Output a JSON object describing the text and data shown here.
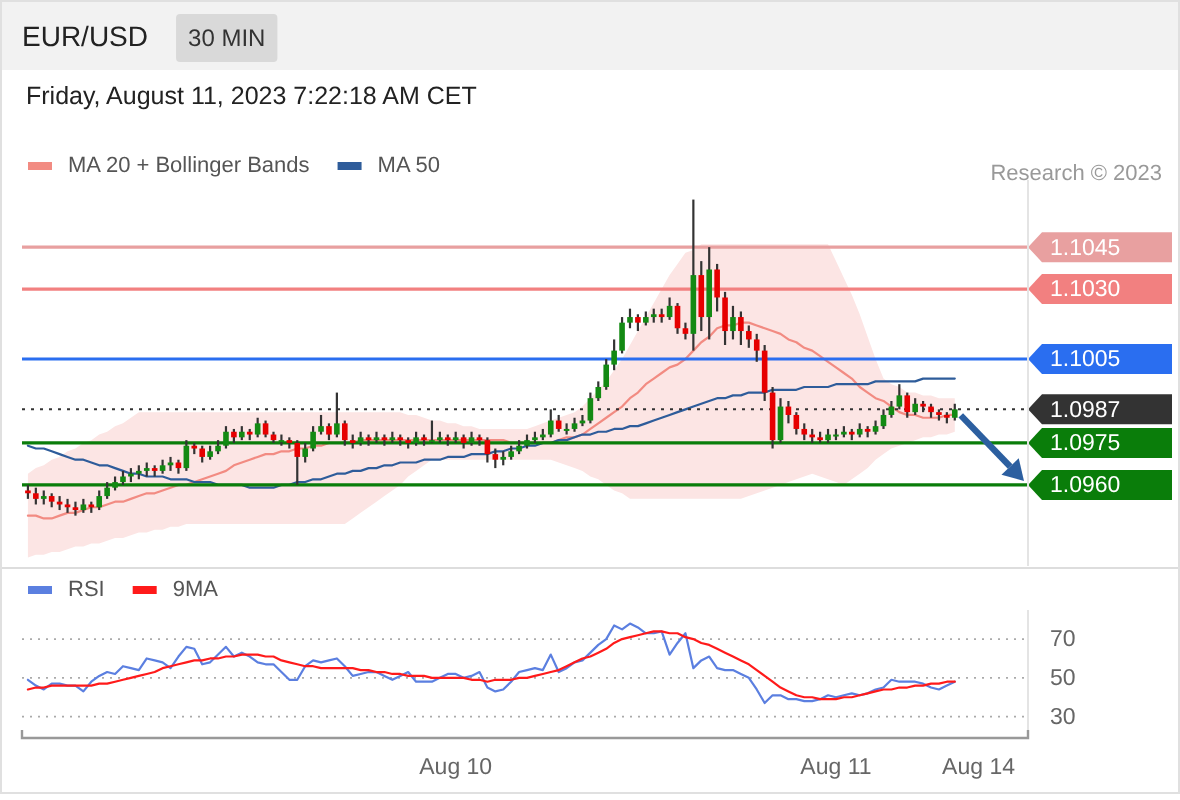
{
  "chart_data": [
    {
      "type": "candlestick",
      "title": "EUR/USD",
      "subtitle": "30 MIN",
      "annotations": [
        "Friday, August 11, 2023 7:22:18 AM CET",
        "Research © 2023"
      ],
      "categories": [
        null,
        null,
        null,
        null,
        null,
        null,
        null,
        null,
        null,
        null,
        null,
        null,
        null,
        null,
        null,
        null,
        null,
        null,
        null,
        null,
        null,
        null,
        null,
        null,
        null,
        null,
        null,
        null,
        null,
        null,
        null,
        null,
        null,
        null,
        null,
        null,
        null,
        null,
        null,
        null,
        null,
        null,
        null,
        null,
        null,
        null,
        null,
        null,
        null,
        null,
        null,
        null,
        null,
        null,
        null,
        null,
        null,
        null,
        null,
        null,
        null,
        null,
        null,
        null,
        null,
        null,
        null,
        null,
        null,
        null,
        null,
        null,
        null,
        null,
        null,
        null,
        null,
        null,
        null,
        null,
        null,
        null,
        null,
        null,
        null,
        null,
        null,
        null,
        null,
        null,
        null,
        null,
        null,
        null,
        null,
        null,
        null,
        null,
        null,
        null,
        null,
        null,
        null,
        null,
        null,
        null,
        null,
        null,
        null,
        null,
        null,
        null,
        null,
        null,
        null,
        null,
        null,
        null,
        null,
        null,
        null,
        null,
        null,
        null,
        null,
        null,
        null
      ],
      "ohlc": [
        [
          1.0958,
          1.096,
          1.0955,
          1.0957
        ],
        [
          1.0957,
          1.0959,
          1.0953,
          1.0955
        ],
        [
          1.0955,
          1.0958,
          1.0953,
          1.0956
        ],
        [
          1.0956,
          1.0957,
          1.0952,
          1.0954
        ],
        [
          1.0954,
          1.0956,
          1.0951,
          1.0953
        ],
        [
          1.0953,
          1.0955,
          1.095,
          1.0952
        ],
        [
          1.0952,
          1.0954,
          1.0949,
          1.0951
        ],
        [
          1.0951,
          1.0955,
          1.095,
          1.0953
        ],
        [
          1.0953,
          1.0954,
          1.095,
          1.0952
        ],
        [
          1.0952,
          1.0958,
          1.0951,
          1.0956
        ],
        [
          1.0956,
          1.0961,
          1.0955,
          1.0959
        ],
        [
          1.0959,
          1.0963,
          1.0958,
          1.0961
        ],
        [
          1.0961,
          1.0965,
          1.096,
          1.0963
        ],
        [
          1.0963,
          1.0966,
          1.0961,
          1.0964
        ],
        [
          1.0964,
          1.0967,
          1.0962,
          1.0965
        ],
        [
          1.0965,
          1.0968,
          1.0963,
          1.0966
        ],
        [
          1.0966,
          1.0967,
          1.0963,
          1.0965
        ],
        [
          1.0965,
          1.0969,
          1.0964,
          1.0967
        ],
        [
          1.0967,
          1.097,
          1.0965,
          1.0968
        ],
        [
          1.0968,
          1.0969,
          1.0964,
          1.0966
        ],
        [
          1.0966,
          1.0976,
          1.0965,
          1.0974
        ],
        [
          1.0974,
          1.0975,
          1.0971,
          1.0973
        ],
        [
          1.0973,
          1.0974,
          1.0968,
          1.097
        ],
        [
          1.097,
          1.0974,
          1.0969,
          1.0972
        ],
        [
          1.0972,
          1.0976,
          1.0971,
          1.0974
        ],
        [
          1.0974,
          1.0981,
          1.0973,
          1.0979
        ],
        [
          1.0979,
          1.098,
          1.0975,
          1.0977
        ],
        [
          1.0977,
          1.0981,
          1.0976,
          1.0979
        ],
        [
          1.0979,
          1.098,
          1.0976,
          1.0978
        ],
        [
          1.0978,
          1.0984,
          1.0977,
          1.0982
        ],
        [
          1.0982,
          1.0983,
          1.0977,
          1.0978
        ],
        [
          1.0978,
          1.0979,
          1.0975,
          1.0976
        ],
        [
          1.0976,
          1.0978,
          1.0974,
          1.0976
        ],
        [
          1.0976,
          1.0977,
          1.0973,
          1.0975
        ],
        [
          1.0975,
          1.0976,
          1.096,
          1.097
        ],
        [
          1.097,
          1.0975,
          1.0968,
          1.0973
        ],
        [
          1.0973,
          1.0981,
          1.0972,
          1.0979
        ],
        [
          1.0979,
          1.0985,
          1.0978,
          1.0981
        ],
        [
          1.0981,
          1.0982,
          1.0976,
          1.0978
        ],
        [
          1.0978,
          1.0993,
          1.0977,
          1.0982
        ],
        [
          1.0982,
          1.0983,
          1.0974,
          1.0976
        ],
        [
          1.0976,
          1.0978,
          1.0973,
          1.0975
        ],
        [
          1.0975,
          1.0979,
          1.0974,
          1.0977
        ],
        [
          1.0977,
          1.0978,
          1.0974,
          1.0976
        ],
        [
          1.0976,
          1.0979,
          1.0975,
          1.0977
        ],
        [
          1.0977,
          1.0978,
          1.0974,
          1.0976
        ],
        [
          1.0976,
          1.0979,
          1.0975,
          1.0977
        ],
        [
          1.0977,
          1.0978,
          1.0974,
          1.0976
        ],
        [
          1.0976,
          1.0977,
          1.0973,
          1.0975
        ],
        [
          1.0975,
          1.0979,
          1.0974,
          1.0977
        ],
        [
          1.0977,
          1.0978,
          1.0974,
          1.0976
        ],
        [
          1.0976,
          1.0983,
          1.0975,
          1.0976
        ],
        [
          1.0976,
          1.0979,
          1.0975,
          1.0977
        ],
        [
          1.0977,
          1.0978,
          1.0974,
          1.0976
        ],
        [
          1.0976,
          1.0979,
          1.0975,
          1.0977
        ],
        [
          1.0977,
          1.0978,
          1.0973,
          1.0975
        ],
        [
          1.0975,
          1.0979,
          1.0974,
          1.0977
        ],
        [
          1.0977,
          1.0978,
          1.0974,
          1.0976
        ],
        [
          1.0976,
          1.0977,
          1.0968,
          1.0971
        ],
        [
          1.0971,
          1.0973,
          1.0966,
          1.0969
        ],
        [
          1.0969,
          1.0972,
          1.0967,
          1.097
        ],
        [
          1.097,
          1.0974,
          1.0969,
          1.0972
        ],
        [
          1.0972,
          1.0976,
          1.0971,
          1.0974
        ],
        [
          1.0974,
          1.0978,
          1.0973,
          1.0976
        ],
        [
          1.0976,
          1.0979,
          1.0975,
          1.0977
        ],
        [
          1.0977,
          1.098,
          1.0976,
          1.0978
        ],
        [
          1.0978,
          1.0987,
          1.0977,
          1.0983
        ],
        [
          1.0983,
          1.0985,
          1.0979,
          1.098
        ],
        [
          1.098,
          1.0982,
          1.0978,
          1.098
        ],
        [
          1.098,
          1.0984,
          1.0979,
          1.0982
        ],
        [
          1.0982,
          1.0985,
          1.0981,
          1.0983
        ],
        [
          1.0983,
          1.0993,
          1.0982,
          1.0991
        ],
        [
          1.0991,
          1.0997,
          1.099,
          1.0995
        ],
        [
          1.0995,
          1.1005,
          1.0994,
          1.1003
        ],
        [
          1.1003,
          1.1012,
          1.1001,
          1.1008
        ],
        [
          1.1008,
          1.102,
          1.1007,
          1.1018
        ],
        [
          1.1018,
          1.1023,
          1.1016,
          1.102
        ],
        [
          1.102,
          1.1021,
          1.1015,
          1.1018
        ],
        [
          1.1018,
          1.1022,
          1.1017,
          1.102
        ],
        [
          1.102,
          1.1023,
          1.1018,
          1.1021
        ],
        [
          1.1021,
          1.1023,
          1.1018,
          1.102
        ],
        [
          1.102,
          1.1027,
          1.1019,
          1.1024
        ],
        [
          1.1024,
          1.1025,
          1.1014,
          1.1016
        ],
        [
          1.1016,
          1.1018,
          1.1012,
          1.1014
        ],
        [
          1.1014,
          1.1062,
          1.1008,
          1.1035
        ],
        [
          1.1035,
          1.104,
          1.1015,
          1.102
        ],
        [
          1.102,
          1.1045,
          1.1012,
          1.1037
        ],
        [
          1.1037,
          1.1039,
          1.1022,
          1.1027
        ],
        [
          1.1027,
          1.1029,
          1.101,
          1.1015
        ],
        [
          1.1015,
          1.1024,
          1.1012,
          1.102
        ],
        [
          1.102,
          1.1022,
          1.101,
          1.1015
        ],
        [
          1.1015,
          1.1017,
          1.1009,
          1.1012
        ],
        [
          1.1012,
          1.1014,
          1.1004,
          1.1008
        ],
        [
          1.1008,
          1.101,
          1.099,
          1.0993
        ],
        [
          1.0993,
          1.0995,
          1.0973,
          1.0976
        ],
        [
          1.0976,
          1.0991,
          1.0975,
          1.0988
        ],
        [
          1.0988,
          1.099,
          1.0982,
          1.0985
        ],
        [
          1.0985,
          1.0986,
          1.0978,
          1.098
        ],
        [
          1.098,
          1.0982,
          1.0976,
          1.0978
        ],
        [
          1.0978,
          1.098,
          1.0975,
          1.0977
        ],
        [
          1.0977,
          1.0979,
          1.0975,
          1.0976
        ],
        [
          1.0976,
          1.098,
          1.0975,
          1.0978
        ],
        [
          1.0978,
          1.098,
          1.0976,
          1.0978
        ],
        [
          1.0978,
          1.0981,
          1.0977,
          1.0979
        ],
        [
          1.0979,
          1.098,
          1.0976,
          1.0978
        ],
        [
          1.0978,
          1.0982,
          1.0977,
          1.098
        ],
        [
          1.098,
          1.0981,
          1.0977,
          1.0979
        ],
        [
          1.0979,
          1.0983,
          1.0978,
          1.0981
        ],
        [
          1.0981,
          1.0987,
          1.098,
          1.0985
        ],
        [
          1.0985,
          1.099,
          1.0984,
          1.0988
        ],
        [
          1.0988,
          1.0996,
          1.0987,
          1.0992
        ],
        [
          1.0992,
          1.0993,
          1.0984,
          1.0986
        ],
        [
          1.0986,
          1.0991,
          1.0985,
          1.0989
        ],
        [
          1.0989,
          1.099,
          1.0986,
          1.0988
        ],
        [
          1.0988,
          1.0989,
          1.0984,
          1.0986
        ],
        [
          1.0986,
          1.0987,
          1.0983,
          1.0985
        ],
        [
          1.0985,
          1.0986,
          1.0982,
          1.0984
        ],
        [
          1.0984,
          1.0989,
          1.0983,
          1.0987
        ],
        null,
        null,
        null,
        null,
        null,
        null,
        null,
        null,
        null
      ],
      "series": [
        {
          "type": "line",
          "name": "MA 20 + Bollinger Bands",
          "color": "#f28b82",
          "values": [
            1.0949,
            1.0949,
            1.0948,
            1.0948,
            1.0949,
            1.095,
            1.095,
            1.0951,
            1.0952,
            1.0952,
            1.0953,
            1.0954,
            1.0954,
            1.0955,
            1.0956,
            1.0957,
            1.0957,
            1.0958,
            1.0959,
            1.096,
            1.096,
            1.0961,
            1.0962,
            1.0963,
            1.0964,
            1.0965,
            1.0967,
            1.0968,
            1.0969,
            1.097,
            1.0971,
            1.0971,
            1.0972,
            1.0972,
            1.0973,
            1.0973,
            1.0974,
            1.0974,
            1.0975,
            1.0975,
            1.0975,
            1.0975,
            1.0976,
            1.0976,
            1.0976,
            1.0976,
            1.0976,
            1.0976,
            1.0976,
            1.0976,
            1.0976,
            1.0976,
            1.0976,
            1.0976,
            1.0976,
            1.0976,
            1.0976,
            1.0976,
            1.0976,
            1.0976,
            1.0976,
            1.0975,
            1.0975,
            1.0975,
            1.0975,
            1.0975,
            1.0975,
            1.0976,
            1.0977,
            1.0977,
            1.0978,
            1.098,
            1.0982,
            1.0984,
            1.0986,
            1.0988,
            1.0991,
            1.0993,
            1.0996,
            1.0998,
            1.1,
            1.1002,
            1.1003,
            1.1005,
            1.1008,
            1.1011,
            1.1013,
            1.1016,
            1.1017,
            1.1017,
            1.1018,
            1.1018,
            1.1017,
            1.1016,
            1.1015,
            1.1014,
            1.1012,
            1.1011,
            1.1009,
            1.1008,
            1.1006,
            1.1004,
            1.1002,
            1.1,
            1.0998,
            1.0995,
            1.0993,
            1.0991,
            1.099,
            1.0988,
            1.0986,
            1.0985,
            1.0985,
            1.0984,
            1.0984,
            1.0984,
            1.0985,
            1.0985,
            null,
            null,
            null,
            null,
            null,
            null,
            null,
            null,
            null
          ],
          "upper": [
            1.0964,
            1.0966,
            1.0967,
            1.0969,
            1.097,
            1.0972,
            1.0973,
            1.0975,
            1.0976,
            1.0978,
            1.0979,
            1.0981,
            1.0982,
            1.0984,
            1.0986,
            1.0986,
            1.0986,
            1.0986,
            1.0986,
            1.0986,
            1.0986,
            1.0986,
            1.0986,
            1.0986,
            1.0986,
            1.0986,
            1.0986,
            1.0986,
            1.0986,
            1.0986,
            1.0986,
            1.0986,
            1.0986,
            1.0986,
            1.0986,
            1.0986,
            1.0986,
            1.0986,
            1.0986,
            1.0986,
            1.0986,
            1.0986,
            1.0986,
            1.0986,
            1.0986,
            1.0986,
            1.0986,
            1.0986,
            1.0985,
            1.0985,
            1.0984,
            1.0983,
            1.0983,
            1.0982,
            1.0982,
            1.0981,
            1.0981,
            1.098,
            1.098,
            1.098,
            1.098,
            1.098,
            1.098,
            1.098,
            1.0981,
            1.0982,
            1.0983,
            1.0984,
            1.0985,
            1.0986,
            1.0988,
            1.0991,
            1.0994,
            1.0997,
            1.1001,
            1.1005,
            1.101,
            1.1015,
            1.102,
            1.1025,
            1.103,
            1.1035,
            1.1039,
            1.1043,
            1.1044,
            1.1046,
            1.1046,
            1.1046,
            1.1046,
            1.1046,
            1.1046,
            1.1046,
            1.1046,
            1.1046,
            1.1046,
            1.1046,
            1.1046,
            1.1046,
            1.1046,
            1.1046,
            1.1046,
            1.1046,
            1.104,
            1.1034,
            1.1028,
            1.1021,
            1.1013,
            1.1005,
            1.0998,
            1.0996,
            1.0995,
            1.0993,
            1.0993,
            1.0992,
            1.0992,
            1.0991,
            1.0991,
            1.0991,
            null,
            null,
            null,
            null,
            null,
            null,
            null,
            null,
            null
          ],
          "lower": [
            1.0934,
            1.0935,
            1.0935,
            1.0936,
            1.0936,
            1.0937,
            1.0938,
            1.0938,
            1.0939,
            1.0939,
            1.094,
            1.0941,
            1.0941,
            1.0942,
            1.0943,
            1.0943,
            1.0944,
            1.0944,
            1.0945,
            1.0945,
            1.0946,
            1.0946,
            1.0946,
            1.0946,
            1.0946,
            1.0946,
            1.0946,
            1.0946,
            1.0946,
            1.0946,
            1.0946,
            1.0946,
            1.0946,
            1.0946,
            1.0946,
            1.0946,
            1.0946,
            1.0946,
            1.0946,
            1.0946,
            1.0946,
            1.0948,
            1.095,
            1.0952,
            1.0954,
            1.0956,
            1.0958,
            1.096,
            1.0963,
            1.0965,
            1.0967,
            1.0969,
            1.0969,
            1.0969,
            1.0969,
            1.0969,
            1.0969,
            1.0969,
            1.0969,
            1.0969,
            1.0969,
            1.0969,
            1.0969,
            1.0969,
            1.0969,
            1.0969,
            1.0969,
            1.0968,
            1.0967,
            1.0966,
            1.0965,
            1.0963,
            1.0962,
            1.096,
            1.0958,
            1.0957,
            1.0955,
            1.0955,
            1.0955,
            1.0955,
            1.0955,
            1.0955,
            1.0955,
            1.0955,
            1.0955,
            1.0955,
            1.0955,
            1.0955,
            1.0955,
            1.0955,
            1.0955,
            1.0956,
            1.0957,
            1.0958,
            1.0959,
            1.096,
            1.0961,
            1.0962,
            1.0963,
            1.0964,
            1.0963,
            1.0962,
            1.0961,
            1.096,
            1.0962,
            1.0964,
            1.0966,
            1.0969,
            1.0971,
            1.0973,
            1.0974,
            1.0975,
            1.0976,
            1.0977,
            1.0977,
            1.0978,
            1.0978,
            1.0979,
            null,
            null,
            null,
            null,
            null,
            null,
            null,
            null,
            null
          ]
        },
        {
          "type": "line",
          "name": "MA 50",
          "color": "#2e5c9a",
          "values": [
            1.0974,
            1.0973,
            1.0973,
            1.0972,
            1.0971,
            1.097,
            1.0969,
            1.0969,
            1.0968,
            1.0967,
            1.0967,
            1.0966,
            1.0965,
            1.0964,
            1.0964,
            1.0963,
            1.0963,
            1.0963,
            1.0962,
            1.0962,
            1.0962,
            1.0961,
            1.0961,
            1.0961,
            1.096,
            1.096,
            1.096,
            1.096,
            1.0959,
            1.0959,
            1.0959,
            1.0959,
            1.096,
            1.096,
            1.0961,
            1.0961,
            1.0962,
            1.0962,
            1.0963,
            1.0964,
            1.0964,
            1.0965,
            1.0965,
            1.0966,
            1.0966,
            1.0967,
            1.0967,
            1.0968,
            1.0968,
            1.0968,
            1.0969,
            1.0969,
            1.0969,
            1.097,
            1.097,
            1.097,
            1.0971,
            1.0971,
            1.0971,
            1.0972,
            1.0972,
            1.0973,
            1.0973,
            1.0974,
            1.0974,
            1.0975,
            1.0975,
            1.0976,
            1.0976,
            1.0977,
            1.0978,
            1.0978,
            1.0979,
            1.0979,
            1.098,
            1.098,
            1.0981,
            1.0981,
            1.0982,
            1.0983,
            1.0984,
            1.0985,
            1.0986,
            1.0987,
            1.0988,
            1.0989,
            1.099,
            1.0991,
            1.0991,
            1.0992,
            1.0992,
            1.0993,
            1.0993,
            1.0993,
            1.0994,
            1.0994,
            1.0994,
            1.0994,
            1.0995,
            1.0995,
            1.0995,
            1.0995,
            1.0996,
            1.0996,
            1.0996,
            1.0996,
            1.0996,
            1.0997,
            1.0997,
            1.0997,
            1.0997,
            1.0997,
            1.0997,
            1.0998,
            1.0998,
            1.0998,
            1.0998,
            1.0998,
            null,
            null,
            null,
            null,
            null,
            null,
            null,
            null,
            null
          ]
        }
      ],
      "ylim": [
        1.0931,
        1.1069
      ],
      "yticks": [
        {
          "value": 1.096,
          "label": "1.0960"
        },
        1.0975,
        1.0987,
        1.1005,
        {
          "value": 1.103,
          "label": "1.1030"
        },
        1.1045
      ],
      "ref_lines": [
        {
          "axis": "y",
          "value": 1.1045,
          "color": "#e8a0a0",
          "line_style": "solid"
        },
        {
          "axis": "y",
          "value": 1.103,
          "color": "#f28080",
          "line_style": "solid"
        },
        {
          "axis": "y",
          "value": 1.1005,
          "color": "#2a6ef0",
          "line_style": "solid"
        },
        {
          "axis": "y",
          "value": 1.0987,
          "color": "#333333",
          "line_style": "dotted"
        },
        {
          "axis": "y",
          "value": 1.0975,
          "color": "#0a7d0a",
          "line_style": "solid"
        },
        {
          "axis": "y",
          "value": 1.096,
          "color": "#0a7d0a",
          "line_style": "solid"
        }
      ],
      "legend": "top left",
      "tick_labels": "y"
    },
    {
      "type": "line",
      "categories": [
        null,
        null,
        null,
        null,
        null,
        null,
        null,
        null,
        null,
        null,
        null,
        null,
        null,
        null,
        null,
        null,
        null,
        null,
        null,
        null,
        null,
        null,
        null,
        null,
        null,
        null,
        null,
        null,
        null,
        null,
        null,
        null,
        null,
        null,
        null,
        null,
        null,
        null,
        null,
        null,
        null,
        null,
        null,
        null,
        null,
        null,
        null,
        null,
        null,
        null,
        null,
        null,
        null,
        null,
        "Aug 10",
        null,
        null,
        null,
        null,
        null,
        null,
        null,
        null,
        null,
        null,
        null,
        null,
        null,
        null,
        null,
        null,
        null,
        null,
        null,
        null,
        null,
        null,
        null,
        null,
        null,
        null,
        null,
        null,
        null,
        null,
        null,
        null,
        null,
        null,
        null,
        null,
        null,
        null,
        null,
        null,
        null,
        null,
        null,
        null,
        null,
        null,
        null,
        "Aug 11",
        null,
        null,
        null,
        null,
        null,
        null,
        null,
        null,
        null,
        null,
        null,
        null,
        null,
        null,
        null,
        null,
        null,
        "Aug 14",
        null,
        null,
        null,
        null,
        null,
        null
      ],
      "series": [
        {
          "name": "RSI",
          "color": "#5b7fe0",
          "values": [
            49,
            46,
            44,
            47,
            47,
            46,
            46,
            43,
            48,
            51,
            53,
            52,
            56,
            55,
            54,
            60,
            59,
            58,
            55,
            61,
            66,
            65,
            57,
            58,
            62,
            66,
            61,
            63,
            61,
            58,
            57,
            57,
            53,
            49,
            49,
            56,
            59,
            58,
            59,
            60,
            56,
            51,
            52,
            53,
            53,
            51,
            49,
            51,
            53,
            48,
            48,
            48,
            50,
            52,
            52,
            50,
            51,
            53,
            45,
            43,
            44,
            48,
            53,
            54,
            55,
            54,
            62,
            53,
            55,
            58,
            59,
            63,
            67,
            70,
            77,
            75,
            78,
            76,
            73,
            73,
            74,
            62,
            68,
            73,
            55,
            59,
            61,
            55,
            54,
            54,
            52,
            50,
            44,
            37,
            41,
            41,
            39,
            39,
            38,
            38,
            39,
            41,
            40,
            41,
            42,
            41,
            42,
            44,
            45,
            49,
            48,
            48,
            48,
            47,
            45,
            44,
            46,
            48,
            null,
            null,
            null,
            null,
            null,
            null,
            null,
            null,
            null
          ]
        },
        {
          "name": "9MA",
          "color": "#ff1a1a",
          "values": [
            44,
            45,
            45,
            46,
            46,
            46,
            46,
            46,
            46,
            47,
            47,
            48,
            49,
            50,
            51,
            52,
            53,
            55,
            56,
            57,
            58,
            59,
            59,
            60,
            60,
            61,
            61,
            62,
            62,
            62,
            61,
            61,
            59,
            58,
            57,
            56,
            56,
            55,
            55,
            55,
            55,
            55,
            54,
            54,
            53,
            53,
            52,
            52,
            51,
            51,
            51,
            50,
            50,
            50,
            50,
            50,
            49,
            49,
            48,
            49,
            49,
            49,
            50,
            50,
            51,
            52,
            53,
            54,
            56,
            58,
            60,
            61,
            63,
            65,
            68,
            70,
            71,
            72,
            73,
            74,
            74,
            73,
            73,
            71,
            70,
            68,
            67,
            65,
            63,
            61,
            59,
            57,
            54,
            51,
            48,
            45,
            43,
            41,
            40,
            40,
            39,
            39,
            39,
            40,
            40,
            41,
            42,
            43,
            44,
            44,
            45,
            45,
            46,
            46,
            47,
            47,
            48,
            48,
            null,
            null,
            null,
            null,
            null,
            null,
            null,
            null,
            null
          ]
        }
      ],
      "ylim": [
        20,
        85
      ],
      "yticks": [
        30,
        50,
        70
      ],
      "grid": "y",
      "legend": "top left"
    }
  ]
}
